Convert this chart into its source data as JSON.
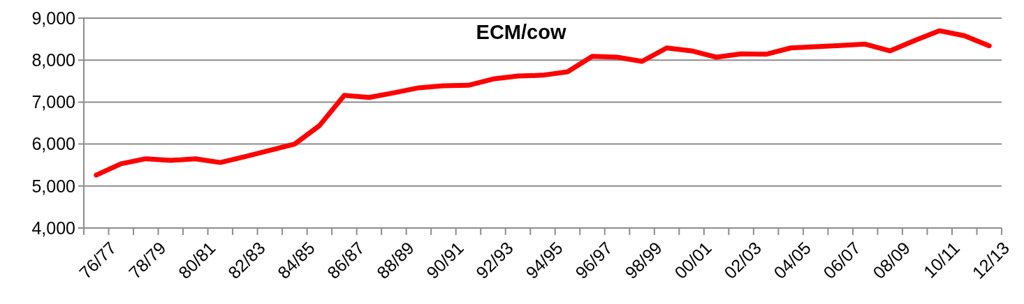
{
  "chart_data": {
    "type": "line",
    "title": "ECM/cow",
    "categories": [
      "76/77",
      null,
      "78/79",
      null,
      "80/81",
      null,
      "82/83",
      null,
      "84/85",
      null,
      "86/87",
      null,
      "88/89",
      null,
      "90/91",
      null,
      "92/93",
      null,
      "94/95",
      null,
      "96/97",
      null,
      "98/99",
      null,
      "00/01",
      null,
      "02/03",
      null,
      "04/05",
      null,
      "06/07",
      null,
      "08/09",
      null,
      "10/11",
      null,
      "12/13"
    ],
    "series": [
      {
        "color": "#ff0000",
        "values": [
          5260,
          5530,
          5650,
          5610,
          5650,
          5560,
          5700,
          5850,
          6000,
          6440,
          7160,
          7110,
          7220,
          7340,
          7390,
          7400,
          7550,
          7620,
          7640,
          7720,
          8090,
          8070,
          7970,
          8290,
          8220,
          8070,
          8150,
          8140,
          8290,
          8320,
          8350,
          8380,
          8220,
          8470,
          8700,
          8580,
          8340
        ]
      }
    ],
    "ylim": [
      4000,
      9000
    ],
    "yticks": [
      {
        "value": 4000,
        "label": "4,000"
      },
      {
        "value": 5000,
        "label": "5,000"
      },
      {
        "value": 6000,
        "label": "6,000"
      },
      {
        "value": 7000,
        "label": "7,000"
      },
      {
        "value": 8000,
        "label": "8,000"
      },
      {
        "value": 9000,
        "label": "9,000"
      }
    ],
    "grid": "y",
    "marker": "none",
    "line_style": "solid"
  }
}
